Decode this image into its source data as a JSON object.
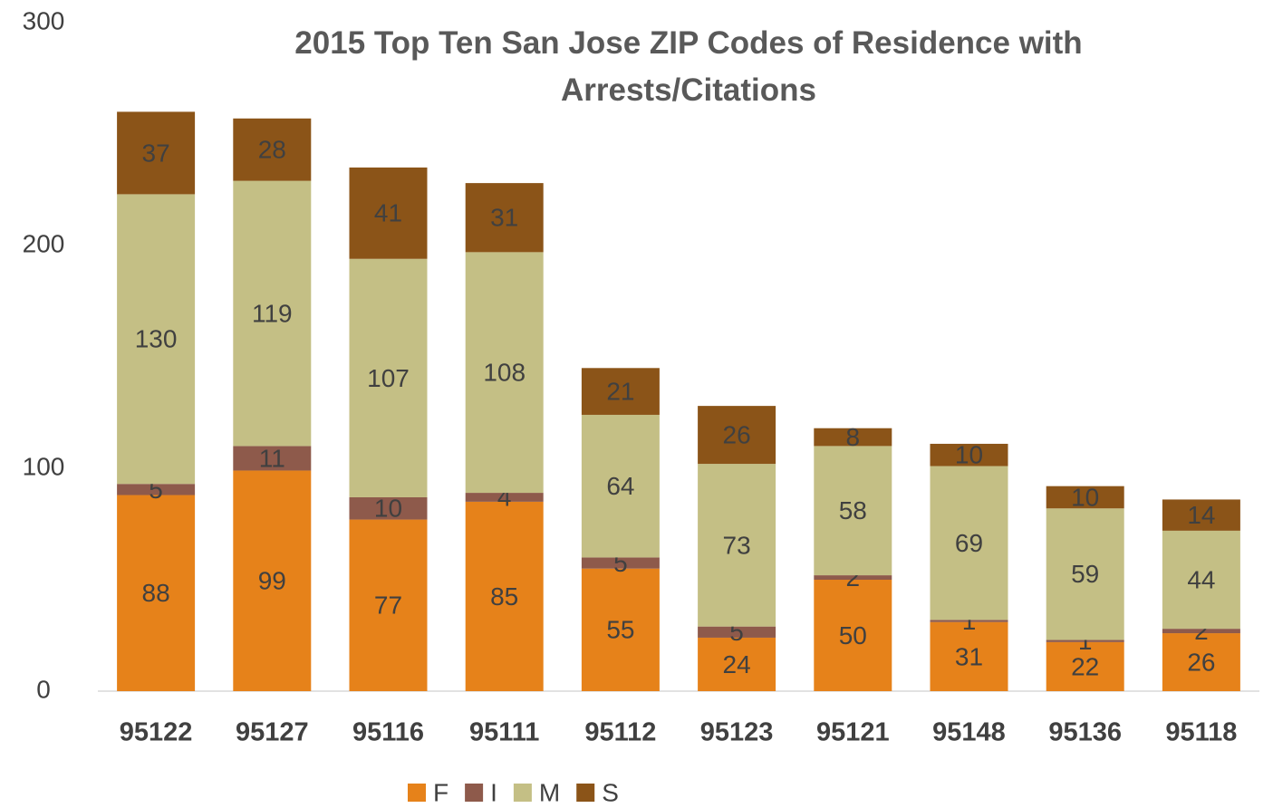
{
  "chart_data": {
    "type": "stacked_bar",
    "title": "2015 Top Ten San Jose ZIP Codes of Residence with Arrests/Citations",
    "categories": [
      "95122",
      "95127",
      "95116",
      "95111",
      "95112",
      "95123",
      "95121",
      "95148",
      "95136",
      "95118"
    ],
    "series": [
      {
        "name": "F",
        "color": "#e6821a",
        "values": [
          88,
          99,
          77,
          85,
          55,
          24,
          50,
          31,
          22,
          26
        ]
      },
      {
        "name": "I",
        "color": "#8e5a4b",
        "values": [
          5,
          11,
          10,
          4,
          5,
          5,
          2,
          1,
          1,
          2
        ]
      },
      {
        "name": "M",
        "color": "#c4bf85",
        "values": [
          130,
          119,
          107,
          108,
          64,
          73,
          58,
          69,
          59,
          44
        ]
      },
      {
        "name": "S",
        "color": "#8b5418",
        "values": [
          37,
          28,
          41,
          31,
          21,
          26,
          8,
          10,
          10,
          14
        ]
      }
    ],
    "ylim": [
      0,
      300
    ],
    "yticks": [
      0,
      100,
      200,
      300
    ],
    "grid": false,
    "legend": "bottom"
  }
}
